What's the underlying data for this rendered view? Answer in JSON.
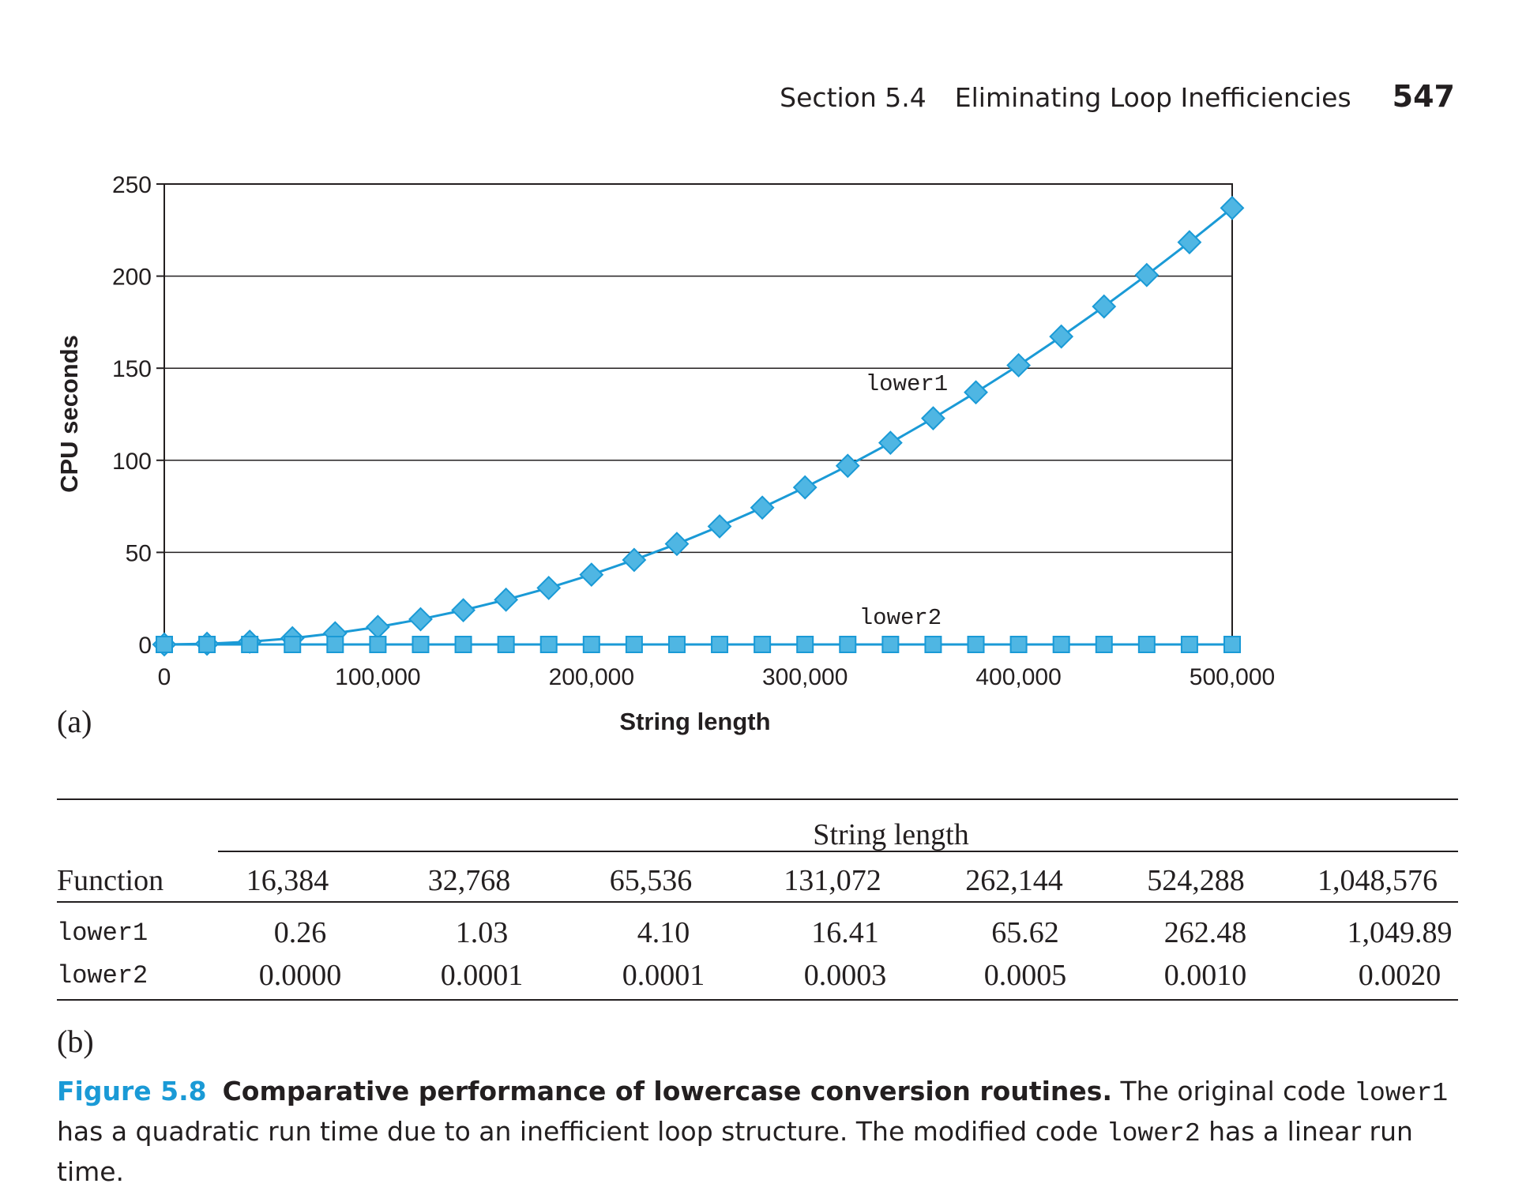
{
  "header": {
    "section": "Section 5.4",
    "title": "Eliminating Loop Inefficiencies",
    "page": "547"
  },
  "chart_data": {
    "type": "line",
    "xlabel": "String length",
    "ylabel": "CPU seconds",
    "xlim": [
      0,
      500000
    ],
    "ylim": [
      0,
      250
    ],
    "x_ticks": [
      "0",
      "100,000",
      "200,000",
      "300,000",
      "400,000",
      "500,000"
    ],
    "y_ticks": [
      "0",
      "50",
      "100",
      "150",
      "200",
      "250"
    ],
    "grid": "horizontal",
    "x": [
      0,
      20000,
      40000,
      60000,
      80000,
      100000,
      120000,
      140000,
      160000,
      180000,
      200000,
      220000,
      240000,
      260000,
      280000,
      300000,
      320000,
      340000,
      360000,
      380000,
      400000,
      420000,
      440000,
      460000,
      480000,
      500000
    ],
    "series": [
      {
        "name": "lower1",
        "marker": "diamond",
        "values": [
          0,
          0.4,
          1.5,
          3.4,
          6.1,
          9.5,
          13.7,
          18.6,
          24.3,
          30.7,
          37.9,
          45.9,
          54.6,
          64.1,
          74.3,
          85.3,
          97.0,
          109.5,
          122.8,
          136.9,
          151.6,
          167.2,
          183.5,
          200.6,
          218.4,
          237.0
        ]
      },
      {
        "name": "lower2",
        "marker": "square",
        "values": [
          0,
          0,
          0,
          0,
          0,
          0,
          0,
          0,
          0,
          0,
          0,
          0,
          0,
          0,
          0,
          0,
          0,
          0,
          0,
          0,
          0,
          0,
          0,
          0,
          0,
          0
        ]
      }
    ],
    "color": "#1a9ad6",
    "marker_fill": "#4fb6e3"
  },
  "panel_a_label": "(a)",
  "panel_b_label": "(b)",
  "table": {
    "group_header": "String length",
    "function_header": "Function",
    "columns": [
      "16,384",
      "32,768",
      "65,536",
      "131,072",
      "262,144",
      "524,288",
      "1,048,576"
    ],
    "rows": [
      {
        "name": "lower1",
        "values": [
          "0.26",
          "1.03",
          "4.10",
          "16.41",
          "65.62",
          "262.48",
          "1,049.89"
        ]
      },
      {
        "name": "lower2",
        "values": [
          "0.0000",
          "0.0001",
          "0.0001",
          "0.0003",
          "0.0005",
          "0.0010",
          "0.0020"
        ]
      }
    ]
  },
  "caption": {
    "figure": "Figure 5.8",
    "title": "Comparative performance of lowercase conversion routines.",
    "text1": " The original code ",
    "code1": "lower1",
    "text2": " has a quadratic run time due to an inefficient loop structure. The modified code ",
    "code2": "lower2",
    "text3": " has a linear run time."
  }
}
